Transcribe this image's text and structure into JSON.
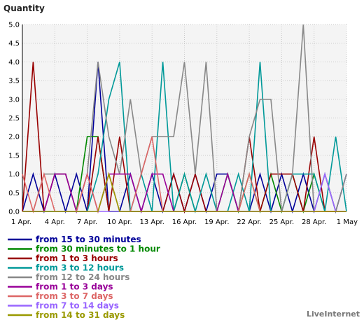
{
  "chart_data": {
    "type": "line",
    "ylabel": "Quantity",
    "ylim": [
      0,
      5
    ],
    "yticks": [
      "0.0",
      "0.5",
      "1.0",
      "1.5",
      "2.0",
      "2.5",
      "3.0",
      "3.5",
      "4.0",
      "4.5",
      "5.0"
    ],
    "xticks": [
      "1 Apr.",
      "4 Apr.",
      "7 Apr.",
      "10 Apr.",
      "13 Apr.",
      "16 Apr.",
      "19 Apr.",
      "22 Apr.",
      "25 Apr.",
      "28 Apr.",
      "1 May"
    ],
    "grid": true,
    "legend_position": "bottom-left",
    "categories": [
      "1 Apr.",
      "2 Apr.",
      "3 Apr.",
      "4 Apr.",
      "5 Apr.",
      "6 Apr.",
      "7 Apr.",
      "8 Apr.",
      "9 Apr.",
      "10 Apr.",
      "11 Apr.",
      "12 Apr.",
      "13 Apr.",
      "14 Apr.",
      "15 Apr.",
      "16 Apr.",
      "17 Apr.",
      "18 Apr.",
      "19 Apr.",
      "20 Apr.",
      "21 Apr.",
      "22 Apr.",
      "23 Apr.",
      "24 Apr.",
      "25 Apr.",
      "26 Apr.",
      "27 Apr.",
      "28 Apr.",
      "29 Apr.",
      "30 Apr.",
      "1 May"
    ],
    "series": [
      {
        "name": "from 15 to 30 minutes",
        "color": "#000099",
        "values": [
          0,
          1,
          0,
          1,
          0,
          1,
          0,
          4,
          0,
          0,
          1,
          0,
          1,
          0,
          1,
          0,
          1,
          0,
          1,
          1,
          0,
          0,
          1,
          0,
          1,
          0,
          1,
          0,
          1,
          0,
          1
        ]
      },
      {
        "name": "from 30 minutes to 1 hour",
        "color": "#008800",
        "values": [
          0,
          0,
          0,
          0,
          0,
          0,
          2,
          2,
          0,
          0,
          0,
          0,
          0,
          0,
          0,
          1,
          0,
          0,
          0,
          1,
          0,
          1,
          0,
          1,
          0,
          1,
          0,
          1,
          0,
          0,
          0
        ]
      },
      {
        "name": "from 1 to 3 hours",
        "color": "#990000",
        "values": [
          0,
          4,
          0,
          1,
          1,
          0,
          0,
          2,
          0,
          2,
          0,
          0,
          0,
          0,
          1,
          0,
          1,
          0,
          0,
          0,
          0,
          2,
          0,
          1,
          1,
          1,
          0,
          2,
          0,
          0,
          0
        ]
      },
      {
        "name": "from 3 to 12 hours",
        "color": "#009999",
        "values": [
          0,
          0,
          0,
          0,
          0,
          0,
          0,
          1,
          3,
          4,
          0,
          1,
          0,
          4,
          0,
          1,
          0,
          1,
          0,
          0,
          1,
          0,
          4,
          0,
          0,
          1,
          1,
          1,
          0,
          2,
          0
        ]
      },
      {
        "name": "from 12 to 24 hours",
        "color": "#888888",
        "values": [
          0,
          0,
          1,
          1,
          1,
          0,
          1,
          4,
          2,
          1,
          3,
          1,
          2,
          2,
          2,
          4,
          1,
          4,
          0,
          0,
          0,
          2,
          3,
          3,
          0,
          1,
          5,
          0,
          1,
          0,
          1
        ]
      },
      {
        "name": "from 1 to 3 days",
        "color": "#990099",
        "values": [
          0,
          0,
          0,
          1,
          1,
          0,
          1,
          0,
          1,
          1,
          1,
          0,
          1,
          1,
          0,
          0,
          0,
          0,
          0,
          1,
          0,
          0,
          0,
          0,
          0,
          0,
          0,
          0,
          0,
          0,
          0
        ]
      },
      {
        "name": "from 3 to 7 days",
        "color": "#dd6666",
        "values": [
          1,
          0,
          1,
          0,
          0,
          0,
          1,
          0,
          1,
          0,
          0,
          1,
          2,
          0,
          0,
          0,
          0,
          0,
          0,
          0,
          0,
          1,
          0,
          0,
          0,
          0,
          0,
          0,
          0,
          0,
          0
        ]
      },
      {
        "name": "from 7 to 14 days",
        "color": "#9966ff",
        "values": [
          0,
          0,
          0,
          0,
          0,
          0,
          0,
          0,
          0,
          0,
          0,
          0,
          0,
          0,
          0,
          0,
          0,
          0,
          0,
          0,
          0,
          0,
          0,
          0,
          0,
          0,
          0,
          0,
          1,
          0,
          0
        ]
      },
      {
        "name": "from 14 to 31 days",
        "color": "#999900",
        "values": [
          0,
          0,
          0,
          0,
          0,
          0,
          0,
          0,
          1,
          0,
          0,
          0,
          0,
          0,
          0,
          0,
          0,
          0,
          0,
          0,
          0,
          0,
          0,
          0,
          0,
          0,
          0,
          0,
          0,
          0,
          0
        ]
      }
    ]
  },
  "branding": "LiveInternet"
}
